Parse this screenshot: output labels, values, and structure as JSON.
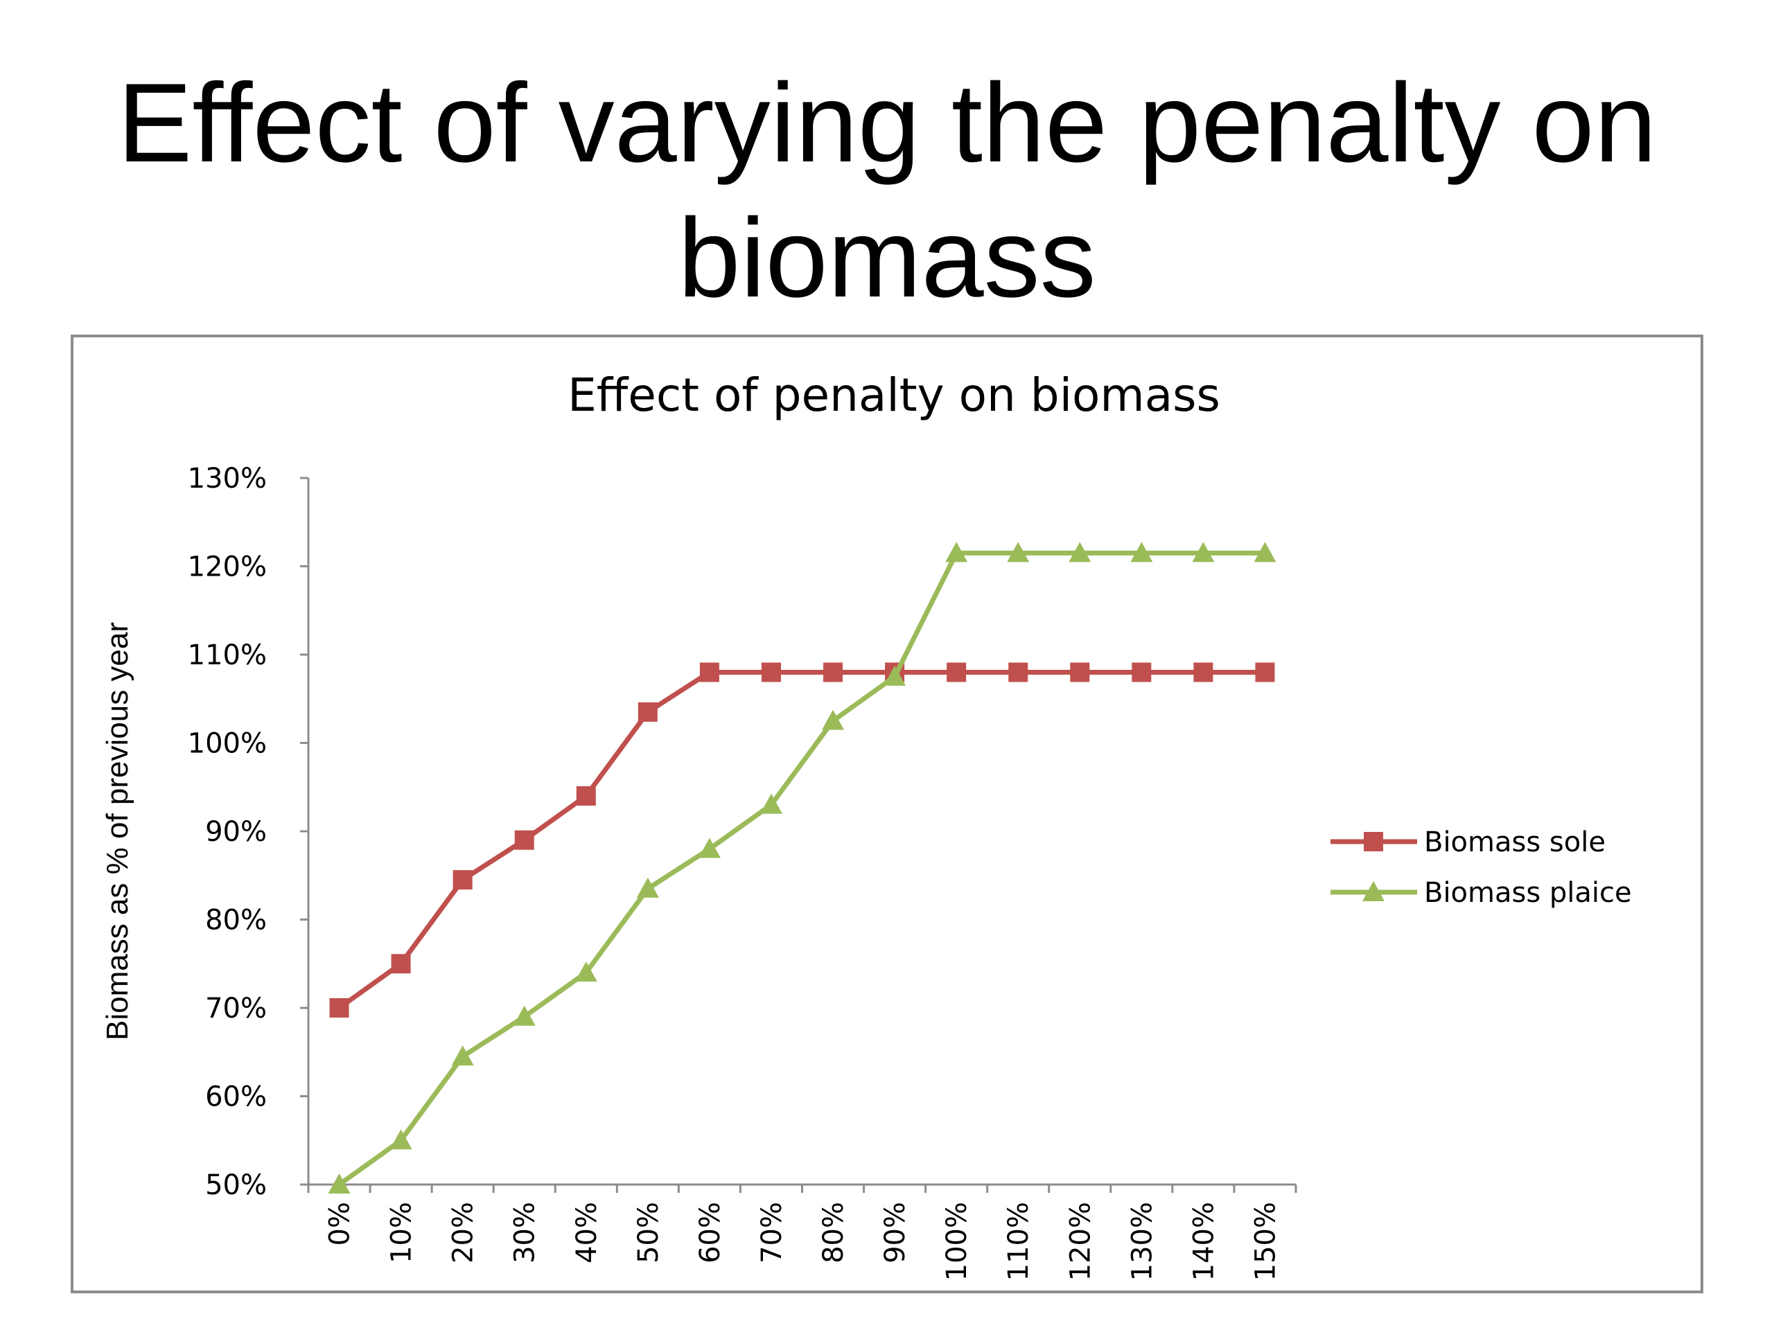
{
  "slide": {
    "title_line1": "Effect of varying the penalty on",
    "title_line2": "biomass"
  },
  "chart_data": {
    "type": "line",
    "title": "Effect of penalty on biomass",
    "xlabel": "",
    "ylabel": "Biomass as % of previous year",
    "categories": [
      "0%",
      "10%",
      "20%",
      "30%",
      "40%",
      "50%",
      "60%",
      "70%",
      "80%",
      "90%",
      "100%",
      "110%",
      "120%",
      "130%",
      "140%",
      "150%"
    ],
    "y_ticks": [
      "50%",
      "60%",
      "70%",
      "80%",
      "90%",
      "100%",
      "110%",
      "120%",
      "130%"
    ],
    "ylim": [
      50,
      130
    ],
    "grid": false,
    "legend_position": "right",
    "series": [
      {
        "name": "Biomass sole",
        "color": "#c0504d",
        "marker": "square",
        "values": [
          70,
          75,
          84.5,
          89,
          94,
          103.5,
          108,
          108,
          108,
          108,
          108,
          108,
          108,
          108,
          108,
          108
        ]
      },
      {
        "name": "Biomass plaice",
        "color": "#9bbb59",
        "marker": "triangle",
        "values": [
          50,
          55,
          64.5,
          69,
          74,
          83.5,
          88,
          93,
          102.5,
          107.5,
          121.5,
          121.5,
          121.5,
          121.5,
          121.5,
          121.5
        ]
      }
    ]
  }
}
